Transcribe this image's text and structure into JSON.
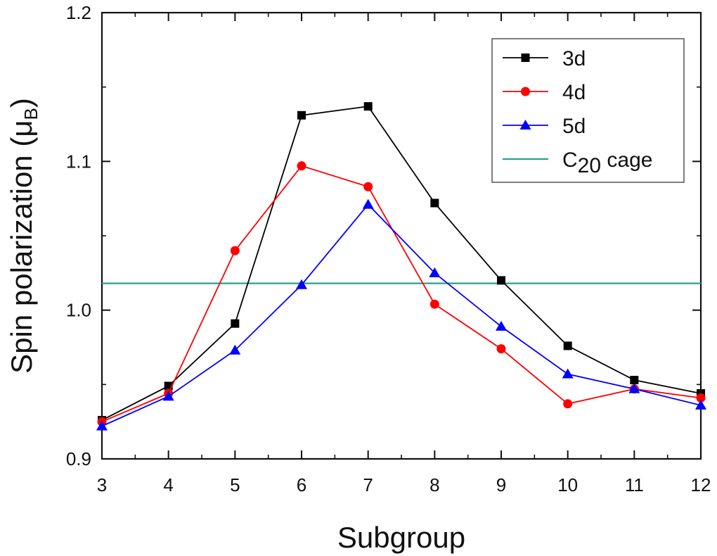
{
  "chart_data": {
    "type": "line",
    "xlabel": "Subgroup",
    "ylabel_main": "Spin polarization (",
    "ylabel_mu": "μ",
    "ylabel_sub": "B",
    "ylabel_close": ")",
    "xlim": [
      3,
      12
    ],
    "ylim": [
      0.9,
      1.2
    ],
    "x_ticks": [
      3,
      4,
      5,
      6,
      7,
      8,
      9,
      10,
      11,
      12
    ],
    "y_ticks": [
      0.9,
      1.0,
      1.1,
      1.2
    ],
    "y_tick_labels": [
      "0.9",
      "1.0",
      "1.1",
      "1.2"
    ],
    "grid": false,
    "legend_position": "top-right",
    "x": [
      3,
      4,
      5,
      6,
      7,
      8,
      9,
      10,
      11,
      12
    ],
    "series": [
      {
        "name": "3d",
        "color": "#000000",
        "marker": "square",
        "values": [
          0.926,
          0.949,
          0.991,
          1.131,
          1.137,
          1.072,
          1.02,
          0.976,
          0.953,
          0.944
        ]
      },
      {
        "name": "4d",
        "color": "#ff0000",
        "marker": "circle",
        "values": [
          0.925,
          0.944,
          1.04,
          1.097,
          1.083,
          1.004,
          0.974,
          0.937,
          0.947,
          0.941
        ]
      },
      {
        "name": "5d",
        "color": "#0000ff",
        "marker": "triangle",
        "values": [
          0.922,
          0.942,
          0.973,
          1.017,
          1.071,
          1.025,
          0.989,
          0.957,
          0.947,
          0.936
        ]
      }
    ],
    "reference_line": {
      "name_main": "C",
      "name_sub": "20",
      "name_rest": " cage",
      "color": "#2aa08a",
      "value": 1.018
    }
  }
}
